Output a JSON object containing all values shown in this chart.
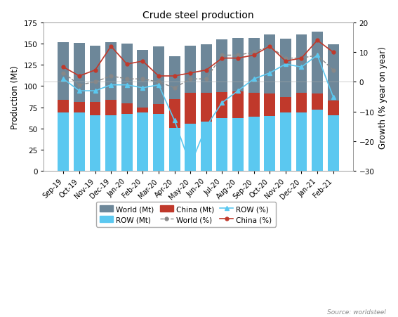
{
  "title": "Crude steel production",
  "ylabel_left": "Production (Mt)",
  "ylabel_right": "Growth (% year on year)",
  "source": "Source: worldsteel",
  "categories": [
    "Sep-19",
    "Oct-19",
    "Nov-19",
    "Dec-19",
    "Jan-20",
    "Feb-20",
    "Mar-20",
    "Apr-20",
    "May-20",
    "Jun-20",
    "Jul-20",
    "Aug-20",
    "Sep-20",
    "Oct-20",
    "Nov-20",
    "Dec-20",
    "Jan-21",
    "Feb-21"
  ],
  "world_mt": [
    152,
    151,
    148,
    152,
    150,
    143,
    147,
    135,
    148,
    149,
    155,
    157,
    157,
    161,
    156,
    161,
    164,
    149
  ],
  "row_mt": [
    69,
    69,
    66,
    66,
    67,
    69,
    67,
    51,
    56,
    58,
    62,
    62,
    64,
    65,
    69,
    69,
    72,
    66
  ],
  "china_mt": [
    84,
    81,
    81,
    84,
    80,
    75,
    79,
    85,
    92,
    92,
    93,
    94,
    92,
    91,
    87,
    92,
    91,
    83
  ],
  "world_pct": [
    3,
    -1,
    0,
    2,
    1,
    1,
    0,
    -2,
    1,
    1,
    9,
    9,
    10,
    12,
    8,
    8,
    9,
    4
  ],
  "row_pct": [
    1,
    -3,
    -3,
    -1,
    -1,
    -2,
    -1,
    -13,
    -28,
    -15,
    -7,
    -3,
    1,
    3,
    6,
    5,
    9,
    -5
  ],
  "china_pct": [
    5,
    2,
    4,
    12,
    6,
    7,
    2,
    2,
    3,
    4,
    8,
    8,
    9,
    12,
    7,
    8,
    14,
    10
  ],
  "ylim_left": [
    0,
    175
  ],
  "ylim_right": [
    -30,
    20
  ],
  "yticks_left": [
    0,
    25,
    50,
    75,
    100,
    125,
    150,
    175
  ],
  "yticks_right": [
    -30,
    -20,
    -10,
    0,
    10,
    20
  ],
  "bar_width": 0.7,
  "color_world": "#6d8799",
  "color_row": "#5bc8f0",
  "color_china": "#c0392b",
  "color_world_line": "#888888",
  "color_row_line": "#5bc8f0",
  "color_china_line": "#c0392b",
  "background_color": "#ffffff",
  "figsize": [
    5.67,
    4.52
  ],
  "dpi": 100
}
